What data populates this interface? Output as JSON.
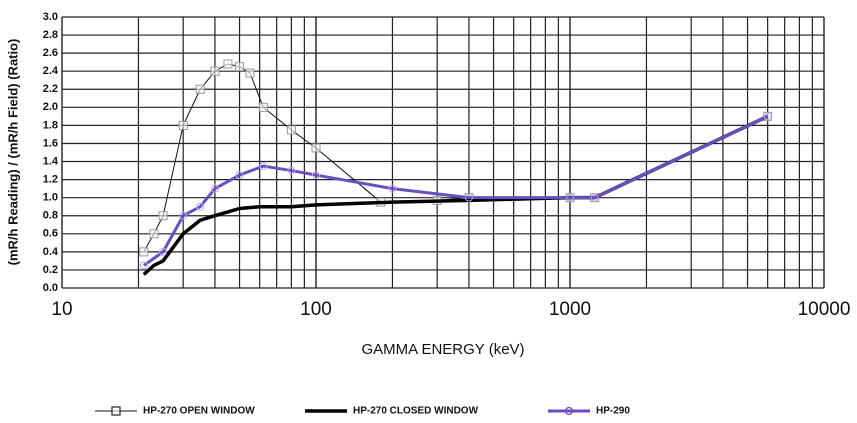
{
  "chart_data": {
    "type": "line",
    "x_label": "GAMMA ENERGY (keV)",
    "y_label": "(mR/h Reading) / (mR/h Field) (Ratio)",
    "xscale": "log",
    "xlim": [
      10,
      10000
    ],
    "xticks": [
      10,
      100,
      1000,
      10000
    ],
    "xminor": [
      20,
      30,
      40,
      50,
      60,
      70,
      80,
      90,
      200,
      300,
      400,
      500,
      600,
      700,
      800,
      900,
      2000,
      3000,
      4000,
      5000,
      6000,
      7000,
      8000,
      9000
    ],
    "ylim": [
      0,
      3.0
    ],
    "yticks": [
      {
        "value": 0,
        "label": "0.0"
      },
      0.2,
      0.4,
      0.6,
      0.8,
      {
        "value": 1,
        "label": "1.0"
      },
      1.2,
      1.4,
      1.6,
      1.8,
      {
        "value": 2,
        "label": "2.0"
      },
      2.2,
      2.4,
      2.6,
      2.8,
      {
        "value": 3,
        "label": "3.0"
      }
    ],
    "grid": true,
    "legend": "bottom",
    "series": [
      {
        "name": "HP-270 OPEN WINDOW",
        "color": "#111111",
        "width": 1,
        "marker": "square",
        "x": [
          21,
          23,
          25,
          30,
          35,
          40,
          45,
          50,
          55,
          62,
          80,
          100,
          180,
          300,
          400,
          1000,
          1250,
          6000
        ],
        "values": [
          0.4,
          0.6,
          0.8,
          1.8,
          2.2,
          2.4,
          2.48,
          2.45,
          2.38,
          2.0,
          1.75,
          1.55,
          0.95,
          0.97,
          1.0,
          1.0,
          1.0,
          1.9
        ]
      },
      {
        "name": "HP-270 CLOSED WINDOW",
        "color": "#000000",
        "width": 3.5,
        "marker": "none",
        "x": [
          21,
          23,
          25,
          30,
          35,
          40,
          50,
          60,
          80,
          100,
          200,
          400,
          1000,
          1250,
          6000
        ],
        "values": [
          0.15,
          0.25,
          0.3,
          0.6,
          0.75,
          0.8,
          0.88,
          0.9,
          0.9,
          0.92,
          0.95,
          0.97,
          1.0,
          1.0,
          1.9
        ]
      },
      {
        "name": "HP-290",
        "color": "#6a4fc2",
        "width": 3,
        "marker": "circle",
        "x": [
          21,
          25,
          30,
          35,
          40,
          50,
          62,
          80,
          100,
          200,
          400,
          1000,
          1250,
          6000
        ],
        "values": [
          0.25,
          0.4,
          0.8,
          0.9,
          1.1,
          1.25,
          1.35,
          1.3,
          1.25,
          1.1,
          1.0,
          1.0,
          1.0,
          1.9
        ]
      }
    ]
  }
}
